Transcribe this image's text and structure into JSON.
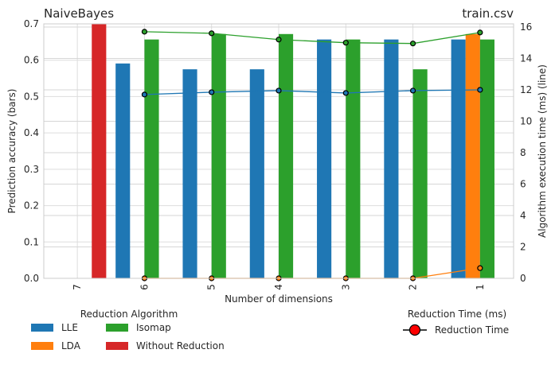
{
  "chart_data": {
    "type": "bar",
    "title_left": "NaiveBayes",
    "title_right": "train.csv",
    "xlabel": "Number of dimensions",
    "ylabel_left": "Prediction accuracy (bars)",
    "ylabel_right": "Algorithm execution time (ms) (line)",
    "categories": [
      "7",
      "6",
      "5",
      "4",
      "3",
      "2",
      "1"
    ],
    "ylim_left": [
      0,
      0.7
    ],
    "yticks_left": [
      "0.0",
      "0.1",
      "0.2",
      "0.3",
      "0.4",
      "0.5",
      "0.6",
      "0.7"
    ],
    "ylim_right": [
      0,
      16.2
    ],
    "yticks_right": [
      "0",
      "2",
      "4",
      "6",
      "8",
      "10",
      "12",
      "14",
      "16"
    ],
    "grid": true,
    "bar_series": [
      {
        "name": "LLE",
        "color": "#1f77b4",
        "values": [
          null,
          0.591,
          0.575,
          0.575,
          0.657,
          0.657,
          0.657
        ]
      },
      {
        "name": "LDA",
        "color": "#ff7f0e",
        "values": [
          null,
          null,
          null,
          null,
          null,
          null,
          0.672
        ]
      },
      {
        "name": "Isomap",
        "color": "#2ca02c",
        "values": [
          null,
          0.657,
          0.672,
          0.672,
          0.657,
          0.575,
          0.657
        ]
      },
      {
        "name": "Without Reduction",
        "color": "#d62728",
        "values": [
          0.7,
          null,
          null,
          null,
          null,
          null,
          null
        ]
      }
    ],
    "line_series": [
      {
        "name": "LLE",
        "color": "#1f77b4",
        "values": [
          null,
          11.7,
          11.85,
          11.95,
          11.8,
          11.95,
          12.0
        ]
      },
      {
        "name": "LDA",
        "color": "#ff7f0e",
        "values": [
          null,
          0.0,
          0.0,
          0.0,
          0.0,
          0.0,
          0.65
        ]
      },
      {
        "name": "Isomap",
        "color": "#2ca02c",
        "values": [
          null,
          15.7,
          15.6,
          15.2,
          15.0,
          14.95,
          15.65
        ]
      }
    ],
    "legend_bars": {
      "title": "Reduction Algorithm",
      "entries": [
        "LLE",
        "LDA",
        "Isomap",
        "Without Reduction"
      ],
      "placement": "bottom-left"
    },
    "legend_time": {
      "title": "Reduction Time (ms)",
      "entry": "Reduction Time",
      "marker_color": "#ff0000",
      "placement": "bottom-right"
    }
  }
}
